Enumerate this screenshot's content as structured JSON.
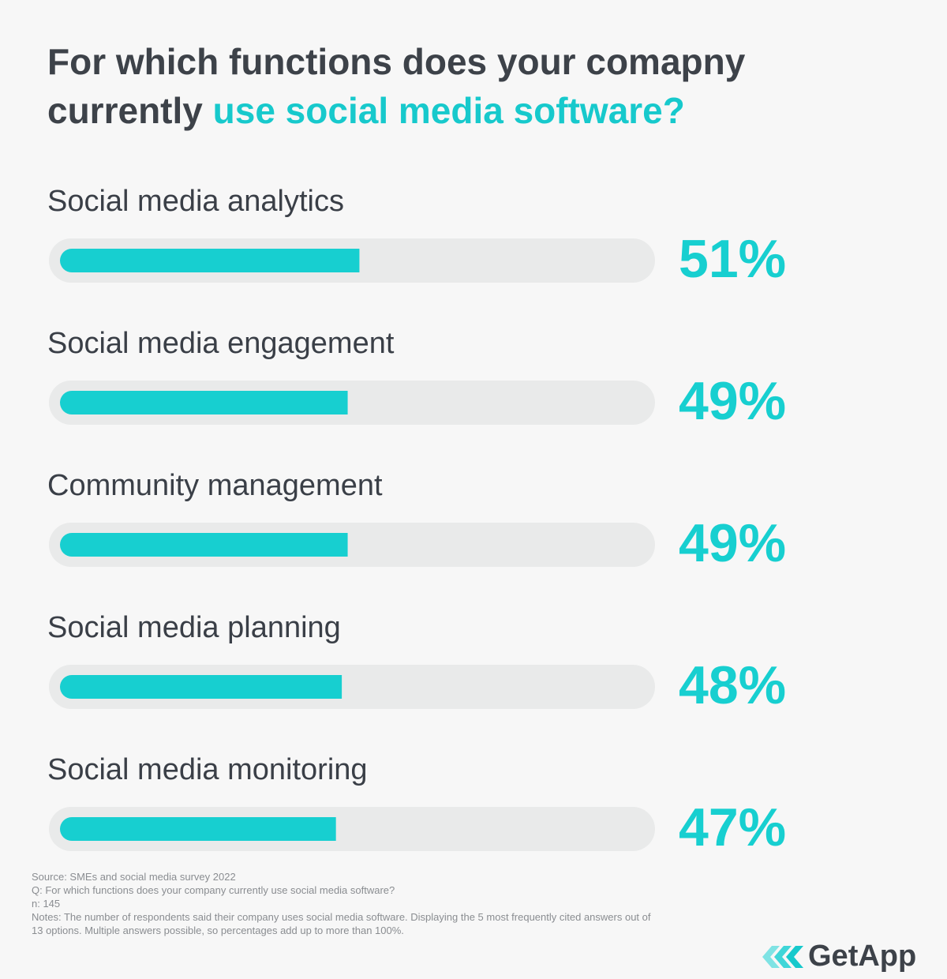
{
  "chart_data": {
    "type": "bar",
    "orientation": "horizontal",
    "title": "For which functions does your comapny",
    "title_line2": "currently",
    "title_highlight": "use social media software?",
    "categories": [
      "Social media analytics",
      "Social media engagement",
      "Community management",
      "Social media planning",
      "Social media monitoring"
    ],
    "values": [
      51,
      49,
      49,
      48,
      47
    ],
    "value_labels": [
      "51%",
      "49%",
      "49%",
      "48%",
      "47%"
    ],
    "color": "#17cfd0",
    "xlim": [
      0,
      100
    ],
    "source": "Source: SMEs and social media survey 2022",
    "question": "Q: For which functions does your company currently use social media software?",
    "n": "n: 145",
    "notes": "Notes: The number of respondents said their company uses social media software. Displaying the 5 most frequently cited answers out of 13 options. Multiple answers possible, so percentages add up to more than 100%.",
    "logo": "GetApp"
  }
}
